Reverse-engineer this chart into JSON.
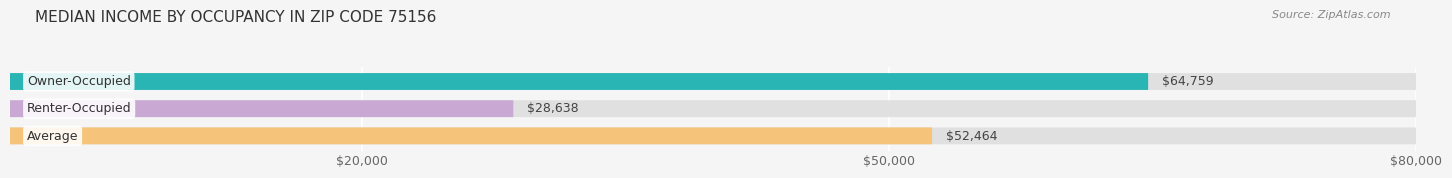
{
  "title": "MEDIAN INCOME BY OCCUPANCY IN ZIP CODE 75156",
  "source": "Source: ZipAtlas.com",
  "categories": [
    "Owner-Occupied",
    "Renter-Occupied",
    "Average"
  ],
  "values": [
    64759,
    28638,
    52464
  ],
  "bar_colors": [
    "#2ab5b5",
    "#c9a8d4",
    "#f5c47a"
  ],
  "value_labels": [
    "$64,759",
    "$28,638",
    "$52,464"
  ],
  "xlim": [
    0,
    80000
  ],
  "xticks": [
    20000,
    50000,
    80000
  ],
  "xtick_labels": [
    "$20,000",
    "$50,000",
    "$80,000"
  ],
  "background_color": "#f5f5f5",
  "bar_background_color": "#e0e0e0",
  "title_fontsize": 11,
  "label_fontsize": 9,
  "value_fontsize": 9,
  "tick_fontsize": 9,
  "bar_height": 0.62
}
